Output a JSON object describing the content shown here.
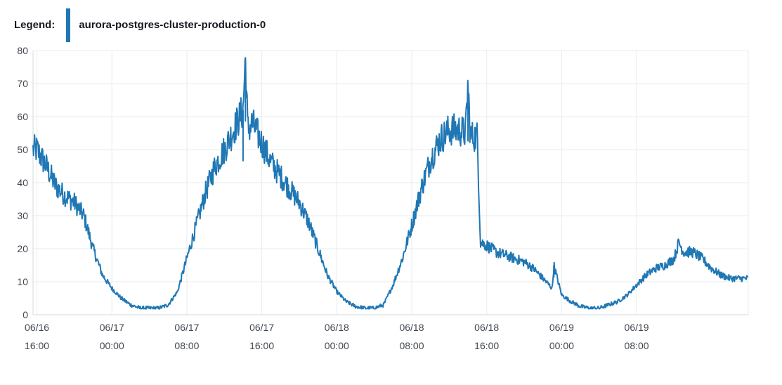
{
  "legend": {
    "title": "Legend:",
    "items": [
      {
        "label": "aurora-postgres-cluster-production-0",
        "color": "#1f77b4"
      }
    ]
  },
  "chart_data": {
    "type": "line",
    "title": "",
    "xlabel": "",
    "ylabel": "",
    "ylim": [
      0,
      80
    ],
    "yticks": [
      0,
      10,
      20,
      30,
      40,
      50,
      60,
      70,
      80
    ],
    "xlim": [
      "06/16 15:35",
      "06/19 19:55"
    ],
    "xticks": [
      {
        "date": "06/16",
        "time": "16:00"
      },
      {
        "date": "06/17",
        "time": "00:00"
      },
      {
        "date": "06/17",
        "time": "08:00"
      },
      {
        "date": "06/17",
        "time": "16:00"
      },
      {
        "date": "06/18",
        "time": "00:00"
      },
      {
        "date": "06/18",
        "time": "08:00"
      },
      {
        "date": "06/18",
        "time": "16:00"
      },
      {
        "date": "06/19",
        "time": "00:00"
      },
      {
        "date": "06/19",
        "time": "08:00"
      }
    ],
    "grid": true,
    "legend_position": "top-left",
    "series": [
      {
        "name": "aurora-postgres-cluster-production-0",
        "color": "#1f77b4",
        "points": [
          [
            "06/16 15:35",
            50
          ],
          [
            "06/16 16:00",
            50
          ],
          [
            "06/16 17:00",
            45
          ],
          [
            "06/16 18:00",
            39
          ],
          [
            "06/16 19:00",
            36
          ],
          [
            "06/16 20:00",
            34
          ],
          [
            "06/16 21:00",
            30
          ],
          [
            "06/16 22:00",
            20
          ],
          [
            "06/16 23:00",
            12
          ],
          [
            "06/17 00:00",
            8
          ],
          [
            "06/17 01:00",
            5
          ],
          [
            "06/17 02:00",
            3
          ],
          [
            "06/17 03:00",
            2
          ],
          [
            "06/17 04:00",
            2
          ],
          [
            "06/17 05:00",
            2
          ],
          [
            "06/17 06:00",
            3
          ],
          [
            "06/17 07:00",
            7
          ],
          [
            "06/17 08:00",
            17
          ],
          [
            "06/17 09:00",
            27
          ],
          [
            "06/17 10:00",
            37
          ],
          [
            "06/17 11:00",
            45
          ],
          [
            "06/17 12:00",
            50
          ],
          [
            "06/17 13:00",
            56
          ],
          [
            "06/17 14:00",
            62
          ],
          [
            "06/17 14:15",
            78
          ],
          [
            "06/17 14:30",
            56
          ],
          [
            "06/17 15:00",
            58
          ],
          [
            "06/17 16:00",
            52
          ],
          [
            "06/17 17:00",
            46
          ],
          [
            "06/17 18:00",
            42
          ],
          [
            "06/17 19:00",
            38
          ],
          [
            "06/17 20:00",
            34
          ],
          [
            "06/17 21:00",
            28
          ],
          [
            "06/17 22:00",
            20
          ],
          [
            "06/17 23:00",
            12
          ],
          [
            "06/18 00:00",
            7
          ],
          [
            "06/18 01:00",
            4
          ],
          [
            "06/18 02:00",
            2.5
          ],
          [
            "06/18 03:00",
            2
          ],
          [
            "06/18 04:00",
            2
          ],
          [
            "06/18 05:00",
            3
          ],
          [
            "06/18 06:00",
            9
          ],
          [
            "06/18 07:00",
            17
          ],
          [
            "06/18 08:00",
            27
          ],
          [
            "06/18 09:00",
            38
          ],
          [
            "06/18 10:00",
            47
          ],
          [
            "06/18 11:00",
            53
          ],
          [
            "06/18 12:00",
            56
          ],
          [
            "06/18 13:00",
            56
          ],
          [
            "06/18 13:45",
            55
          ],
          [
            "06/18 14:00",
            70
          ],
          [
            "06/18 14:15",
            54
          ],
          [
            "06/18 15:00",
            54
          ],
          [
            "06/18 15:20",
            22
          ],
          [
            "06/18 16:00",
            21
          ],
          [
            "06/18 17:00",
            19
          ],
          [
            "06/18 18:00",
            18
          ],
          [
            "06/18 19:00",
            17
          ],
          [
            "06/18 20:00",
            16
          ],
          [
            "06/18 21:00",
            14
          ],
          [
            "06/18 22:00",
            11
          ],
          [
            "06/18 23:00",
            8
          ],
          [
            "06/18 23:10",
            15
          ],
          [
            "06/19 00:00",
            6
          ],
          [
            "06/19 01:00",
            4
          ],
          [
            "06/19 02:00",
            2.5
          ],
          [
            "06/19 03:00",
            2
          ],
          [
            "06/19 04:00",
            2
          ],
          [
            "06/19 05:00",
            3
          ],
          [
            "06/19 06:00",
            4
          ],
          [
            "06/19 07:00",
            6
          ],
          [
            "06/19 08:00",
            9
          ],
          [
            "06/19 09:00",
            12
          ],
          [
            "06/19 10:00",
            14
          ],
          [
            "06/19 11:00",
            15
          ],
          [
            "06/19 12:00",
            17
          ],
          [
            "06/19 12:30",
            22
          ],
          [
            "06/19 13:00",
            19
          ],
          [
            "06/19 14:00",
            19
          ],
          [
            "06/19 15:00",
            17
          ],
          [
            "06/19 16:00",
            14
          ],
          [
            "06/19 17:00",
            12
          ],
          [
            "06/19 18:00",
            11
          ],
          [
            "06/19 19:55",
            11
          ]
        ]
      }
    ]
  }
}
